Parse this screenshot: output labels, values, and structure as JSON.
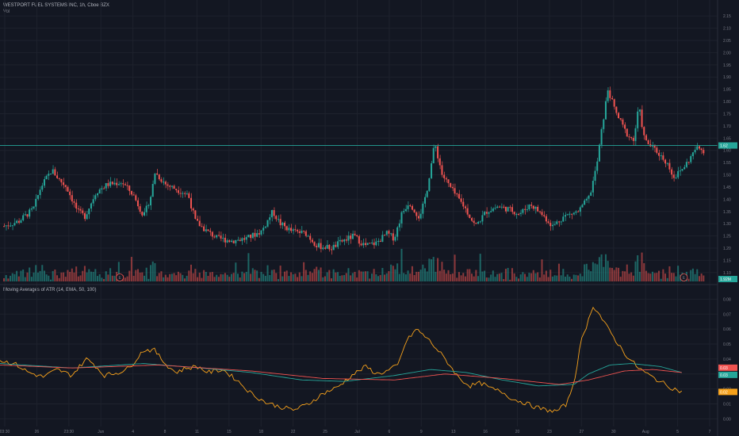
{
  "header": {
    "symbol_line": "WESTPORT FUEL SYSTEMS INC, 1h, Cboe BZX",
    "vol_label": "Vol",
    "indicator_title": "Moving Averages of ATR (14, EMA, 50, 100)"
  },
  "colors": {
    "background": "#131722",
    "grid": "#1e222d",
    "up": "#26a69a",
    "down": "#ef5350",
    "atr": "#f7a21b",
    "ma50": "#26a69a",
    "ma100": "#ef5350",
    "price_line": "#26a69a"
  },
  "chart_data": [
    {
      "type": "candlestick",
      "title": "WESTPORT FUEL SYSTEMS INC, 1h, Cboe BZX",
      "yticks": [
        "2.15",
        "2.10",
        "2.05",
        "2.00",
        "1.95",
        "1.90",
        "1.85",
        "1.80",
        "1.75",
        "1.70",
        "1.65",
        "1.60",
        "1.55",
        "1.50",
        "1.45",
        "1.40",
        "1.35",
        "1.30",
        "1.25",
        "1.20",
        "1.15",
        "1.10"
      ],
      "ylim": [
        1.08,
        2.17
      ],
      "last_price": 1.62,
      "last_price_label": "1.62",
      "volume_label": "1.92M",
      "event_markers": [
        {
          "x": 0.167,
          "label": "E"
        },
        {
          "x": 0.953,
          "label": "E"
        }
      ],
      "anchors": [
        [
          0,
          1.29
        ],
        [
          0.02,
          1.31
        ],
        [
          0.04,
          1.36
        ],
        [
          0.05,
          1.45
        ],
        [
          0.065,
          1.52
        ],
        [
          0.075,
          1.48
        ],
        [
          0.085,
          1.45
        ],
        [
          0.1,
          1.35
        ],
        [
          0.11,
          1.33
        ],
        [
          0.125,
          1.43
        ],
        [
          0.14,
          1.46
        ],
        [
          0.16,
          1.47
        ],
        [
          0.175,
          1.42
        ],
        [
          0.19,
          1.33
        ],
        [
          0.2,
          1.42
        ],
        [
          0.205,
          1.51
        ],
        [
          0.22,
          1.46
        ],
        [
          0.235,
          1.44
        ],
        [
          0.25,
          1.42
        ],
        [
          0.26,
          1.31
        ],
        [
          0.275,
          1.27
        ],
        [
          0.29,
          1.24
        ],
        [
          0.31,
          1.23
        ],
        [
          0.33,
          1.24
        ],
        [
          0.35,
          1.27
        ],
        [
          0.365,
          1.35
        ],
        [
          0.375,
          1.3
        ],
        [
          0.39,
          1.27
        ],
        [
          0.41,
          1.26
        ],
        [
          0.425,
          1.21
        ],
        [
          0.445,
          1.2
        ],
        [
          0.46,
          1.23
        ],
        [
          0.475,
          1.25
        ],
        [
          0.49,
          1.21
        ],
        [
          0.505,
          1.22
        ],
        [
          0.52,
          1.26
        ],
        [
          0.53,
          1.24
        ],
        [
          0.54,
          1.34
        ],
        [
          0.55,
          1.39
        ],
        [
          0.565,
          1.32
        ],
        [
          0.575,
          1.45
        ],
        [
          0.585,
          1.63
        ],
        [
          0.595,
          1.5
        ],
        [
          0.61,
          1.43
        ],
        [
          0.625,
          1.37
        ],
        [
          0.64,
          1.29
        ],
        [
          0.655,
          1.35
        ],
        [
          0.67,
          1.37
        ],
        [
          0.685,
          1.36
        ],
        [
          0.7,
          1.34
        ],
        [
          0.715,
          1.38
        ],
        [
          0.73,
          1.34
        ],
        [
          0.745,
          1.29
        ],
        [
          0.76,
          1.33
        ],
        [
          0.78,
          1.35
        ],
        [
          0.795,
          1.41
        ],
        [
          0.805,
          1.54
        ],
        [
          0.81,
          1.65
        ],
        [
          0.82,
          1.85
        ],
        [
          0.83,
          1.76
        ],
        [
          0.845,
          1.67
        ],
        [
          0.855,
          1.64
        ],
        [
          0.862,
          1.78
        ],
        [
          0.87,
          1.64
        ],
        [
          0.885,
          1.6
        ],
        [
          0.9,
          1.55
        ],
        [
          0.91,
          1.49
        ],
        [
          0.92,
          1.52
        ],
        [
          0.93,
          1.56
        ],
        [
          0.94,
          1.61
        ],
        [
          0.95,
          1.6
        ]
      ]
    },
    {
      "type": "line",
      "title": "Moving Averages of ATR (14, EMA, 50, 100)",
      "yticks": [
        "0.08",
        "0.07",
        "0.06",
        "0.05",
        "0.04",
        "0.03",
        "0.02",
        "0.01",
        "0.00"
      ],
      "ylim": [
        -0.003,
        0.085
      ],
      "xticks": [
        "03:30",
        "26",
        "23:30",
        "Jun",
        "4",
        "8",
        "11",
        "15",
        "18",
        "22",
        "25",
        "Jul",
        "6",
        "9",
        "13",
        "16",
        "20",
        "23",
        "27",
        "30",
        "Aug",
        "5",
        "7"
      ],
      "series": [
        {
          "id": "atr",
          "value_label": "0.02",
          "anchors": [
            [
              0,
              0.039
            ],
            [
              0.02,
              0.037
            ],
            [
              0.04,
              0.031
            ],
            [
              0.06,
              0.028
            ],
            [
              0.08,
              0.033
            ],
            [
              0.1,
              0.029
            ],
            [
              0.12,
              0.04
            ],
            [
              0.13,
              0.037
            ],
            [
              0.145,
              0.029
            ],
            [
              0.165,
              0.031
            ],
            [
              0.18,
              0.034
            ],
            [
              0.2,
              0.046
            ],
            [
              0.215,
              0.046
            ],
            [
              0.23,
              0.037
            ],
            [
              0.245,
              0.031
            ],
            [
              0.26,
              0.034
            ],
            [
              0.275,
              0.035
            ],
            [
              0.29,
              0.031
            ],
            [
              0.31,
              0.033
            ],
            [
              0.33,
              0.026
            ],
            [
              0.35,
              0.017
            ],
            [
              0.37,
              0.011
            ],
            [
              0.39,
              0.008
            ],
            [
              0.41,
              0.006
            ],
            [
              0.43,
              0.01
            ],
            [
              0.45,
              0.017
            ],
            [
              0.47,
              0.021
            ],
            [
              0.49,
              0.029
            ],
            [
              0.51,
              0.035
            ],
            [
              0.525,
              0.03
            ],
            [
              0.54,
              0.032
            ],
            [
              0.555,
              0.036
            ],
            [
              0.565,
              0.051
            ],
            [
              0.58,
              0.06
            ],
            [
              0.595,
              0.054
            ],
            [
              0.61,
              0.046
            ],
            [
              0.625,
              0.037
            ],
            [
              0.64,
              0.027
            ],
            [
              0.655,
              0.022
            ],
            [
              0.67,
              0.024
            ],
            [
              0.685,
              0.02
            ],
            [
              0.7,
              0.018
            ],
            [
              0.715,
              0.013
            ],
            [
              0.73,
              0.011
            ],
            [
              0.745,
              0.008
            ],
            [
              0.76,
              0.006
            ],
            [
              0.775,
              0.005
            ],
            [
              0.79,
              0.01
            ],
            [
              0.8,
              0.025
            ],
            [
              0.81,
              0.052
            ],
            [
              0.82,
              0.066
            ],
            [
              0.826,
              0.076
            ],
            [
              0.835,
              0.07
            ],
            [
              0.845,
              0.062
            ],
            [
              0.86,
              0.051
            ],
            [
              0.875,
              0.041
            ],
            [
              0.89,
              0.034
            ],
            [
              0.905,
              0.029
            ],
            [
              0.92,
              0.025
            ],
            [
              0.935,
              0.021
            ],
            [
              0.95,
              0.018
            ]
          ]
        },
        {
          "id": "ma50",
          "value_label": "0.03",
          "anchors": [
            [
              0,
              0.037
            ],
            [
              0.1,
              0.034
            ],
            [
              0.2,
              0.037
            ],
            [
              0.28,
              0.034
            ],
            [
              0.35,
              0.031
            ],
            [
              0.42,
              0.026
            ],
            [
              0.48,
              0.025
            ],
            [
              0.55,
              0.029
            ],
            [
              0.6,
              0.033
            ],
            [
              0.65,
              0.031
            ],
            [
              0.7,
              0.026
            ],
            [
              0.75,
              0.022
            ],
            [
              0.8,
              0.023
            ],
            [
              0.82,
              0.03
            ],
            [
              0.85,
              0.036
            ],
            [
              0.88,
              0.037
            ],
            [
              0.92,
              0.035
            ],
            [
              0.95,
              0.031
            ]
          ]
        },
        {
          "id": "ma100",
          "value_label": "0.03",
          "anchors": [
            [
              0,
              0.036
            ],
            [
              0.1,
              0.034
            ],
            [
              0.22,
              0.036
            ],
            [
              0.35,
              0.032
            ],
            [
              0.45,
              0.027
            ],
            [
              0.55,
              0.026
            ],
            [
              0.62,
              0.03
            ],
            [
              0.7,
              0.027
            ],
            [
              0.78,
              0.023
            ],
            [
              0.82,
              0.026
            ],
            [
              0.87,
              0.032
            ],
            [
              0.91,
              0.033
            ],
            [
              0.95,
              0.031
            ]
          ]
        }
      ]
    }
  ]
}
